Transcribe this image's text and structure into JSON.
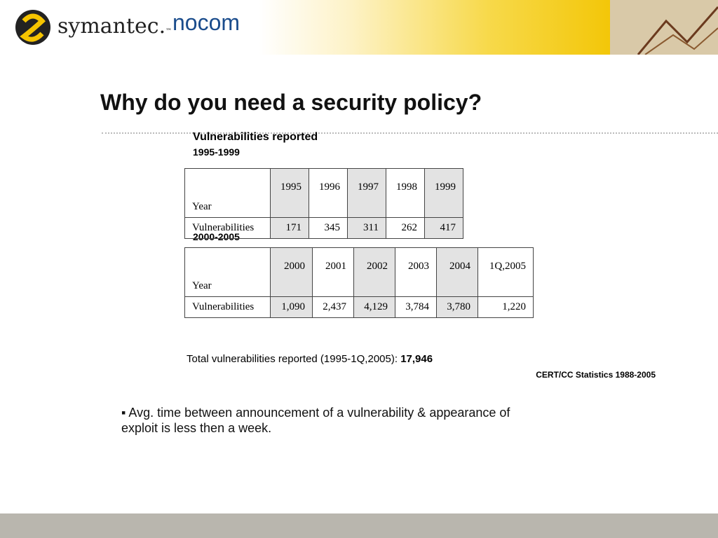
{
  "header": {
    "logo_left": "symantec.",
    "logo_left_tm": "™",
    "logo_right": "nocom"
  },
  "title": "Why do you need a security policy?",
  "section_title": "Vulnerabilities reported",
  "tables": [
    {
      "label": "1995-1999",
      "rows": [
        [
          "Year",
          "1995",
          "1996",
          "1997",
          "1998",
          "1999"
        ],
        [
          "Vulnerabilities",
          "171",
          "345",
          "311",
          "262",
          "417"
        ]
      ]
    },
    {
      "label": "2000-2005",
      "rows": [
        [
          "Year",
          "2000",
          "2001",
          "2002",
          "2003",
          "2004",
          "1Q,2005"
        ],
        [
          "Vulnerabilities",
          "1,090",
          "2,437",
          "4,129",
          "3,784",
          "3,780",
          "1,220"
        ]
      ]
    }
  ],
  "total": {
    "text": "Total vulnerabilities reported (1995-1Q,2005):",
    "value": "17,946"
  },
  "source": "CERT/CC Statistics 1988-2005",
  "bullet": "Avg. time between announcement of a vulnerability & appearance of exploit is less then a week."
}
